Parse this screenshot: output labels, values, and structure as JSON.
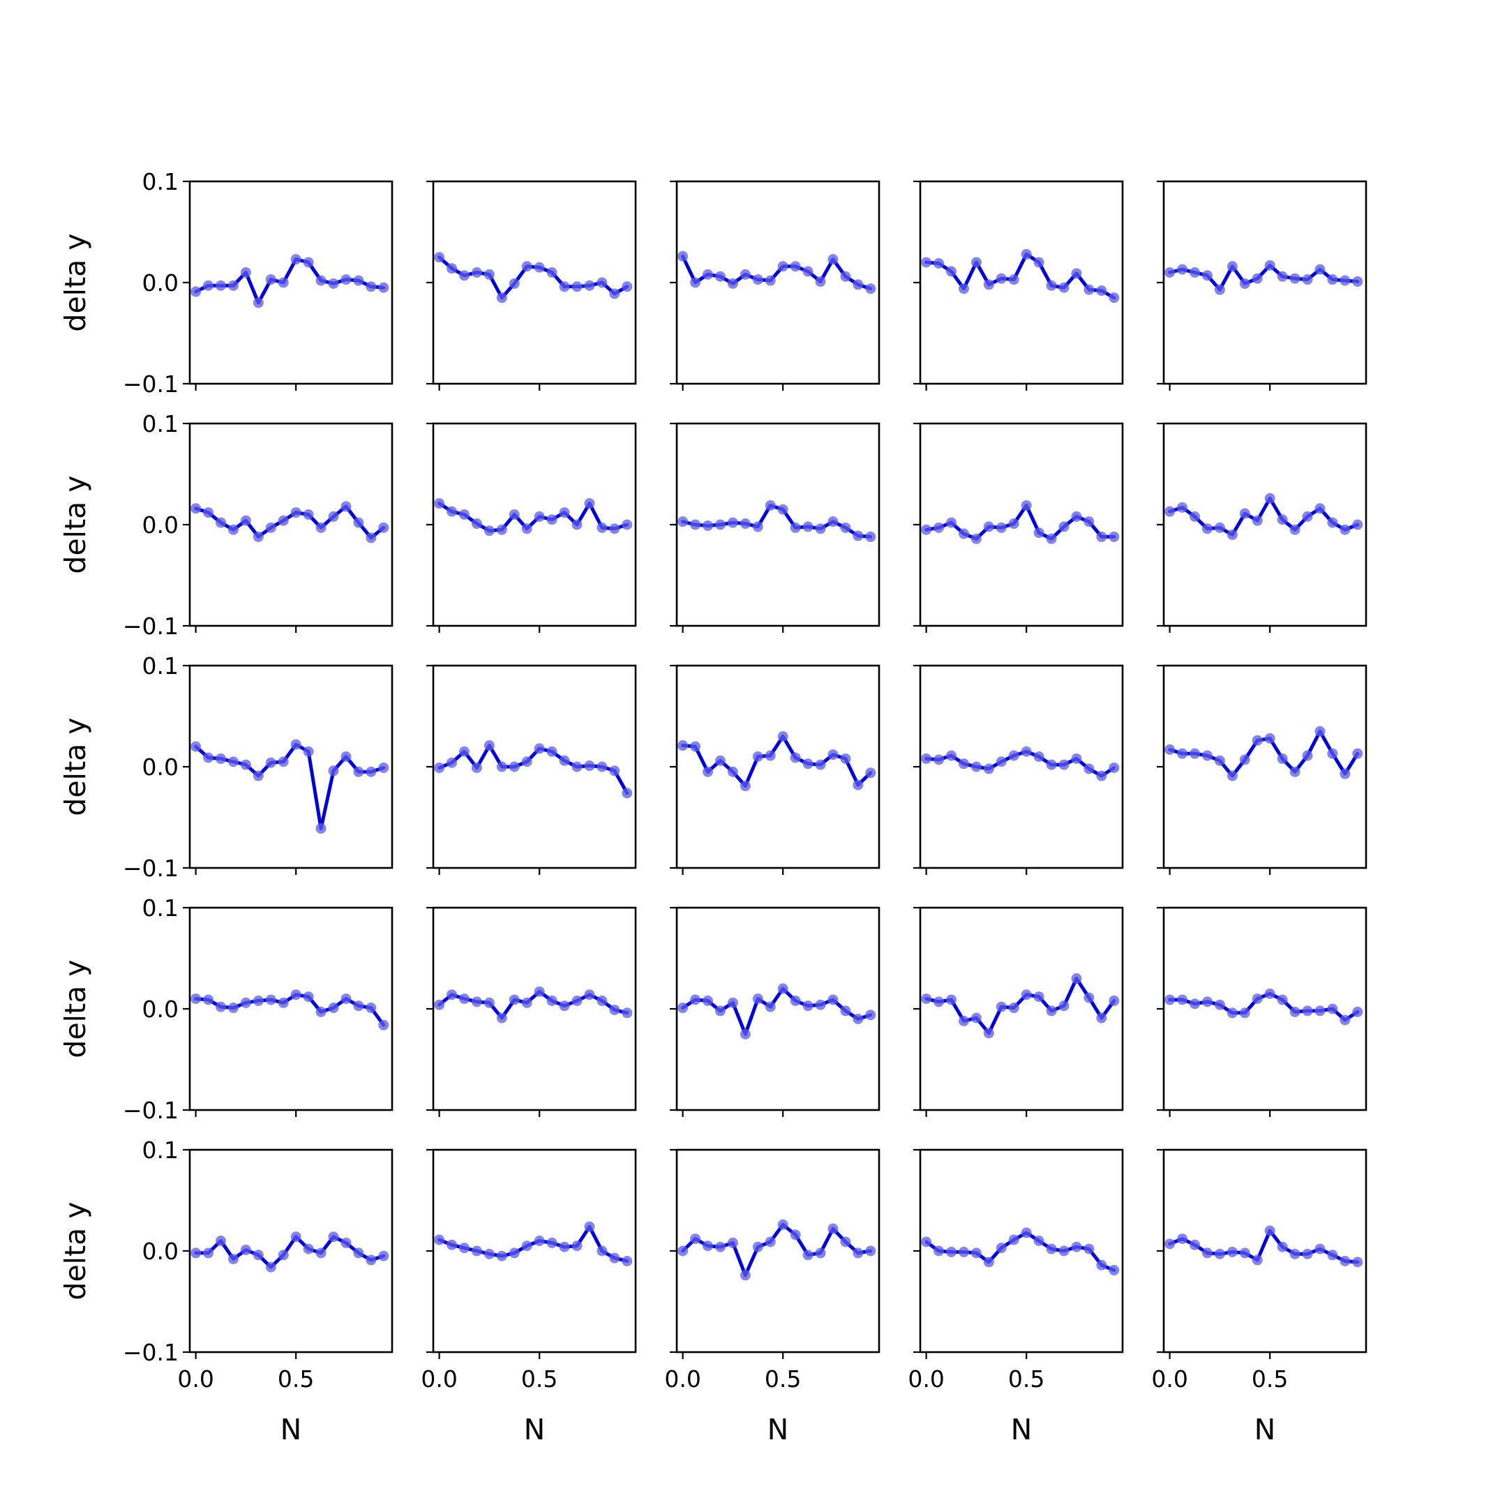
{
  "chart_data": {
    "type": "line",
    "layout": "5x5 grid of small multiples",
    "xlabel": "N",
    "ylabel": "delta y",
    "xlim": [
      -0.03,
      0.98
    ],
    "ylim": [
      -0.1,
      0.1
    ],
    "xticks": [
      "0.0",
      "0.5"
    ],
    "yticks": [
      "0.1",
      "0.0",
      "−0.1"
    ],
    "x": [
      0.0,
      0.0625,
      0.125,
      0.1875,
      0.25,
      0.3125,
      0.375,
      0.4375,
      0.5,
      0.5625,
      0.625,
      0.6875,
      0.75,
      0.8125,
      0.875,
      0.9375
    ],
    "line_color": "#0000dd",
    "marker_color": "#5b5bea",
    "panels": [
      [
        -0.009,
        -0.003,
        -0.003,
        -0.003,
        0.01,
        -0.02,
        0.003,
        0.0,
        0.023,
        0.02,
        0.002,
        -0.001,
        0.003,
        0.002,
        -0.004,
        -0.005
      ],
      [
        0.025,
        0.014,
        0.007,
        0.01,
        0.008,
        -0.015,
        -0.001,
        0.016,
        0.015,
        0.01,
        -0.004,
        -0.004,
        -0.003,
        0.0,
        -0.011,
        -0.004
      ],
      [
        0.026,
        0.0,
        0.008,
        0.006,
        -0.001,
        0.008,
        0.003,
        0.002,
        0.016,
        0.016,
        0.011,
        0.001,
        0.023,
        0.006,
        -0.002,
        -0.006
      ],
      [
        0.02,
        0.019,
        0.011,
        -0.006,
        0.02,
        -0.002,
        0.004,
        0.003,
        0.028,
        0.02,
        -0.003,
        -0.005,
        0.009,
        -0.007,
        -0.008,
        -0.015
      ],
      [
        0.01,
        0.013,
        0.01,
        0.007,
        -0.007,
        0.016,
        -0.001,
        0.004,
        0.017,
        0.006,
        0.004,
        0.003,
        0.013,
        0.003,
        0.002,
        0.001
      ],
      [
        0.016,
        0.012,
        0.002,
        -0.005,
        0.004,
        -0.012,
        -0.003,
        0.004,
        0.012,
        0.01,
        -0.003,
        0.008,
        0.018,
        0.002,
        -0.013,
        -0.003
      ],
      [
        0.021,
        0.013,
        0.01,
        0.001,
        -0.006,
        -0.005,
        0.01,
        -0.004,
        0.008,
        0.005,
        0.012,
        0.0,
        0.021,
        -0.003,
        -0.004,
        0.0
      ],
      [
        0.003,
        0.0,
        -0.001,
        0.0,
        0.002,
        0.001,
        -0.002,
        0.019,
        0.015,
        -0.003,
        -0.002,
        -0.004,
        0.003,
        -0.003,
        -0.011,
        -0.012
      ],
      [
        -0.005,
        -0.003,
        0.002,
        -0.009,
        -0.014,
        -0.002,
        -0.003,
        0.001,
        0.019,
        -0.008,
        -0.014,
        -0.002,
        0.008,
        0.003,
        -0.012,
        -0.012
      ],
      [
        0.013,
        0.017,
        0.008,
        -0.004,
        -0.003,
        -0.01,
        0.011,
        0.004,
        0.026,
        0.005,
        -0.005,
        0.008,
        0.016,
        0.002,
        -0.005,
        0.0
      ],
      [
        0.02,
        0.009,
        0.008,
        0.005,
        0.002,
        -0.009,
        0.004,
        0.005,
        0.022,
        0.015,
        -0.061,
        -0.004,
        0.01,
        -0.005,
        -0.005,
        -0.001
      ],
      [
        -0.001,
        0.004,
        0.015,
        -0.001,
        0.021,
        0.0,
        0.0,
        0.005,
        0.018,
        0.015,
        0.006,
        0.0,
        0.001,
        0.0,
        -0.004,
        -0.026
      ],
      [
        0.021,
        0.02,
        -0.005,
        0.006,
        -0.005,
        -0.019,
        0.01,
        0.011,
        0.03,
        0.009,
        0.003,
        0.002,
        0.012,
        0.008,
        -0.018,
        -0.006
      ],
      [
        0.008,
        0.007,
        0.011,
        0.003,
        0.0,
        -0.002,
        0.005,
        0.011,
        0.015,
        0.01,
        0.002,
        0.002,
        0.008,
        -0.002,
        -0.009,
        -0.001
      ],
      [
        0.017,
        0.013,
        0.013,
        0.011,
        0.006,
        -0.009,
        0.007,
        0.026,
        0.028,
        0.008,
        -0.005,
        0.011,
        0.035,
        0.013,
        -0.007,
        0.013
      ],
      [
        0.01,
        0.009,
        0.002,
        0.001,
        0.006,
        0.008,
        0.009,
        0.006,
        0.014,
        0.012,
        -0.003,
        0.001,
        0.01,
        0.003,
        0.001,
        -0.016
      ],
      [
        0.004,
        0.014,
        0.01,
        0.007,
        0.006,
        -0.009,
        0.009,
        0.006,
        0.017,
        0.008,
        0.003,
        0.008,
        0.014,
        0.008,
        -0.001,
        -0.004
      ],
      [
        0.001,
        0.009,
        0.008,
        -0.002,
        0.006,
        -0.025,
        0.01,
        0.002,
        0.02,
        0.008,
        0.003,
        0.004,
        0.009,
        -0.002,
        -0.01,
        -0.006
      ],
      [
        0.01,
        0.007,
        0.009,
        -0.012,
        -0.009,
        -0.024,
        0.002,
        0.001,
        0.014,
        0.012,
        -0.002,
        0.003,
        0.03,
        0.011,
        -0.009,
        0.008
      ],
      [
        0.009,
        0.009,
        0.005,
        0.007,
        0.004,
        -0.004,
        -0.004,
        0.01,
        0.015,
        0.009,
        -0.003,
        -0.002,
        -0.002,
        0.0,
        -0.011,
        -0.003
      ],
      [
        -0.002,
        -0.002,
        0.01,
        -0.008,
        0.001,
        -0.004,
        -0.016,
        -0.004,
        0.014,
        0.002,
        -0.002,
        0.014,
        0.008,
        -0.002,
        -0.009,
        -0.005
      ],
      [
        0.011,
        0.006,
        0.003,
        0.0,
        -0.003,
        -0.005,
        -0.002,
        0.005,
        0.01,
        0.008,
        0.004,
        0.005,
        0.024,
        0.0,
        -0.007,
        -0.01
      ],
      [
        0.0,
        0.012,
        0.005,
        0.004,
        0.008,
        -0.024,
        0.004,
        0.009,
        0.026,
        0.016,
        -0.004,
        -0.002,
        0.022,
        0.009,
        -0.002,
        0.0
      ],
      [
        0.009,
        0.0,
        -0.001,
        -0.001,
        -0.002,
        -0.011,
        0.003,
        0.011,
        0.018,
        0.01,
        0.002,
        0.0,
        0.004,
        0.002,
        -0.014,
        -0.019
      ],
      [
        0.007,
        0.012,
        0.006,
        -0.002,
        -0.003,
        -0.001,
        -0.002,
        -0.009,
        0.02,
        0.004,
        -0.003,
        -0.003,
        0.002,
        -0.004,
        -0.01,
        -0.011
      ]
    ]
  }
}
